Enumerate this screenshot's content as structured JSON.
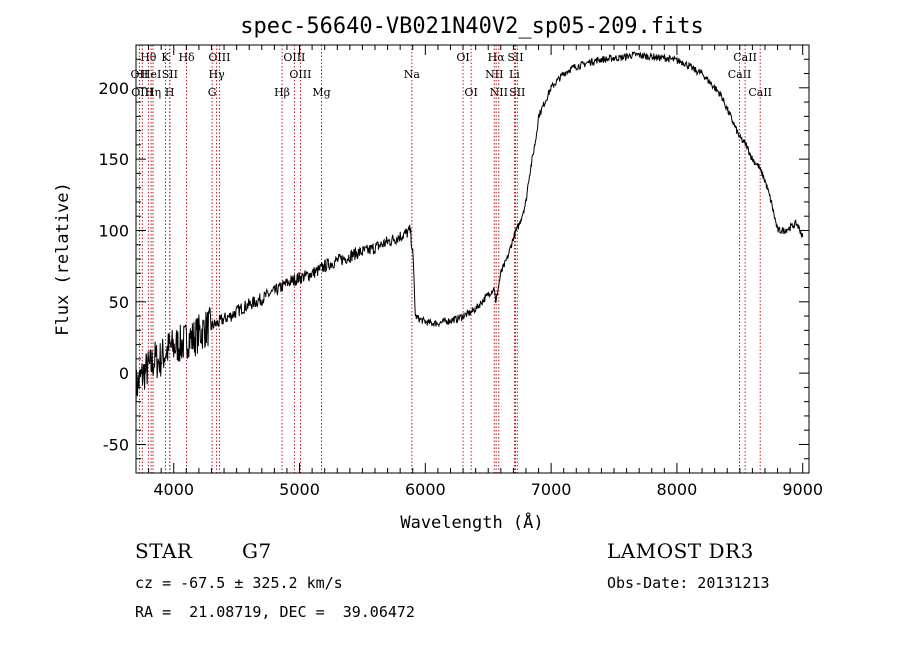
{
  "chart_data": {
    "type": "line",
    "title": "spec-56640-VB021N40V2_sp05-209.fits",
    "xlabel": "Wavelength (Å)",
    "ylabel": "Flux (relative)",
    "xlim": [
      3700,
      9050
    ],
    "ylim": [
      -70,
      230
    ],
    "xticks": [
      4000,
      5000,
      6000,
      7000,
      8000,
      9000
    ],
    "yticks": [
      -50,
      0,
      50,
      100,
      150,
      200
    ],
    "series": [
      {
        "name": "flux",
        "x": [
          3700,
          3730,
          3760,
          3790,
          3820,
          3850,
          3880,
          3910,
          3940,
          3970,
          4000,
          4030,
          4060,
          4090,
          4120,
          4150,
          4200,
          4250,
          4300,
          4350,
          4400,
          4450,
          4500,
          4550,
          4600,
          4650,
          4700,
          4750,
          4800,
          4850,
          4900,
          4950,
          5000,
          5050,
          5100,
          5150,
          5200,
          5250,
          5300,
          5350,
          5400,
          5450,
          5500,
          5550,
          5600,
          5650,
          5700,
          5750,
          5800,
          5850,
          5880,
          5900,
          5910,
          5920,
          5950,
          6000,
          6050,
          6100,
          6150,
          6200,
          6250,
          6300,
          6350,
          6400,
          6450,
          6500,
          6550,
          6560,
          6570,
          6600,
          6650,
          6700,
          6750,
          6800,
          6820,
          6840,
          6860,
          6880,
          6900,
          6950,
          7000,
          7050,
          7100,
          7150,
          7200,
          7250,
          7300,
          7350,
          7400,
          7450,
          7500,
          7550,
          7600,
          7650,
          7700,
          7750,
          7800,
          7850,
          7900,
          7950,
          8000,
          8050,
          8100,
          8150,
          8200,
          8250,
          8300,
          8350,
          8400,
          8450,
          8500,
          8550,
          8600,
          8650,
          8700,
          8750,
          8780,
          8800,
          8850,
          8900,
          8950,
          8980,
          9000
        ],
        "y": [
          -10,
          -5,
          0,
          3,
          5,
          10,
          8,
          12,
          15,
          18,
          18,
          20,
          20,
          22,
          25,
          24,
          28,
          31,
          33,
          35,
          38,
          40,
          43,
          46,
          48,
          50,
          52,
          55,
          57,
          60,
          63,
          65,
          67,
          68,
          70,
          72,
          75,
          77,
          79,
          80,
          82,
          84,
          85,
          86,
          88,
          90,
          92,
          94,
          96,
          98,
          100,
          85,
          65,
          40,
          38,
          36,
          35,
          35,
          36,
          37,
          38,
          40,
          42,
          45,
          50,
          55,
          60,
          48,
          55,
          70,
          80,
          95,
          105,
          120,
          135,
          145,
          155,
          165,
          180,
          190,
          200,
          205,
          210,
          213,
          215,
          216,
          218,
          219,
          220,
          220,
          221,
          221,
          222,
          223,
          223,
          222,
          222,
          221,
          221,
          220,
          219,
          218,
          215,
          212,
          210,
          205,
          200,
          195,
          185,
          175,
          165,
          160,
          150,
          145,
          135,
          120,
          108,
          100,
          100,
          102,
          105,
          100,
          95
        ]
      }
    ],
    "spectral_lines": [
      {
        "label": "Hθ",
        "wl": 3798,
        "row": 1
      },
      {
        "label": "OII",
        "wl": 3727,
        "row": 2
      },
      {
        "label": "HeI",
        "wl": 3820,
        "row": 2
      },
      {
        "label": "OIII",
        "wl": 3750,
        "row": 3
      },
      {
        "label": "Hη",
        "wl": 3835,
        "row": 3
      },
      {
        "label": "K",
        "wl": 3934,
        "row": 1
      },
      {
        "label": "SII",
        "wl": 3969,
        "row": 2
      },
      {
        "label": "H",
        "wl": 3968,
        "row": 3
      },
      {
        "label": "Hδ",
        "wl": 4102,
        "row": 1
      },
      {
        "label": "OIII",
        "wl": 4363,
        "row": 1
      },
      {
        "label": "Hγ",
        "wl": 4341,
        "row": 2
      },
      {
        "label": "G",
        "wl": 4305,
        "row": 3
      },
      {
        "label": "Hβ",
        "wl": 4861,
        "row": 3
      },
      {
        "label": "OIII",
        "wl": 4959,
        "row": 1
      },
      {
        "label": "OIII",
        "wl": 5007,
        "row": 2
      },
      {
        "label": "Mg",
        "wl": 5175,
        "row": 3
      },
      {
        "label": "Na",
        "wl": 5893,
        "row": 2
      },
      {
        "label": "OI",
        "wl": 6300,
        "row": 1
      },
      {
        "label": "OI",
        "wl": 6364,
        "row": 3
      },
      {
        "label": "Hα",
        "wl": 6563,
        "row": 1
      },
      {
        "label": "NII",
        "wl": 6548,
        "row": 2
      },
      {
        "label": "NII",
        "wl": 6584,
        "row": 3
      },
      {
        "label": "SII",
        "wl": 6717,
        "row": 1
      },
      {
        "label": "Li",
        "wl": 6708,
        "row": 2
      },
      {
        "label": "SII",
        "wl": 6731,
        "row": 3
      },
      {
        "label": "CaII",
        "wl": 8498,
        "row": 2
      },
      {
        "label": "CaII",
        "wl": 8542,
        "row": 1
      },
      {
        "label": "CaII",
        "wl": 8662,
        "row": 3
      }
    ],
    "line_color": "#b8000a"
  },
  "info": {
    "object_class": "STAR",
    "subclass": "G7",
    "survey": "LAMOST DR3",
    "redshift": "cz = -67.5 ± 325.2 km/s",
    "obs_date": "Obs-Date: 20131213",
    "coords": "RA =  21.08719, DEC =  39.06472"
  }
}
